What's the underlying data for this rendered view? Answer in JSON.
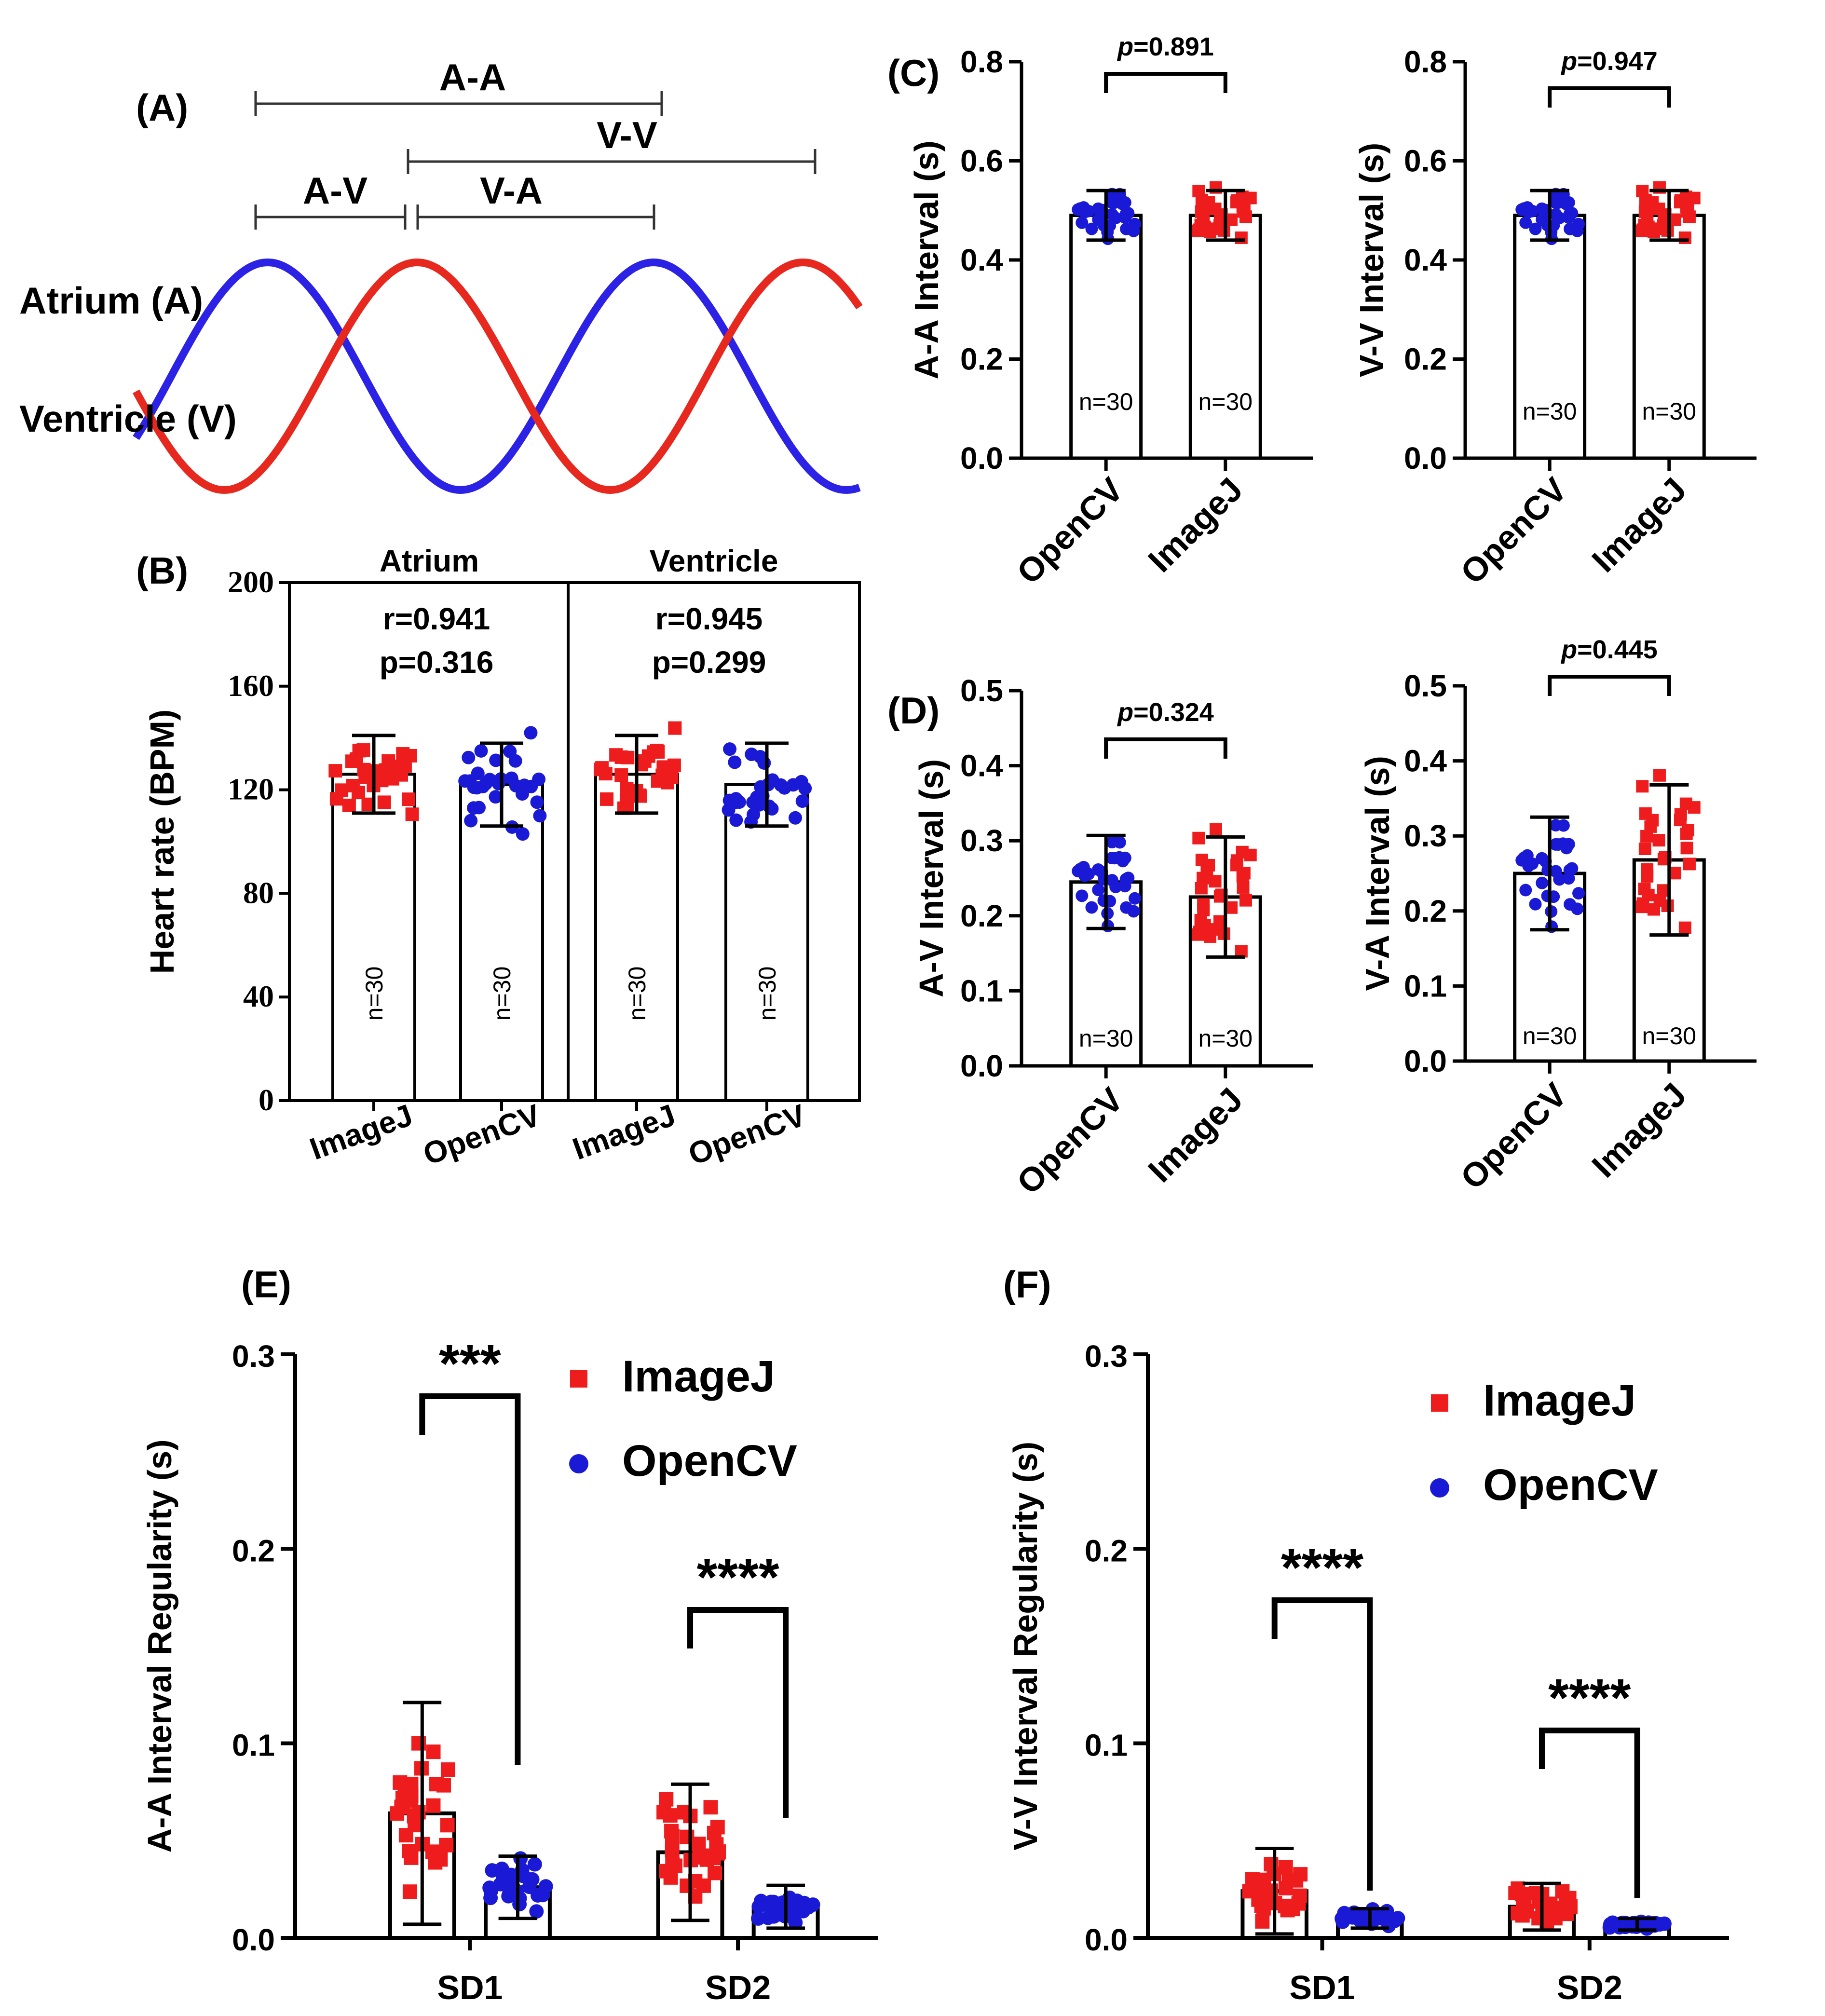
{
  "colors": {
    "imagej": "#ee1c1c",
    "opencv": "#1a1ad6",
    "atrium": "#2b22e6",
    "ventricle": "#e6281e"
  },
  "panelA": {
    "label": "(A)",
    "atrium_label": "Atrium (A)",
    "ventricle_label": "Ventricle (V)",
    "intervals": [
      "A-A",
      "V-V",
      "A-V",
      "V-A"
    ]
  },
  "chart_data": [
    {
      "id": "B",
      "label": "(B)",
      "type": "bar",
      "ylabel": "Heart rate (BPM)",
      "ylim": [
        0,
        200
      ],
      "yticks": [
        "0",
        "40",
        "80",
        "120",
        "160",
        "200"
      ],
      "groups": [
        "Atrium",
        "Ventricle"
      ],
      "categories": [
        "ImageJ",
        "OpenCV",
        "ImageJ",
        "OpenCV"
      ],
      "means": [
        126,
        122,
        126,
        122
      ],
      "sd": [
        15,
        16,
        15,
        16
      ],
      "n_labels": [
        "n=30",
        "n=30",
        "n=30",
        "n=30"
      ],
      "stats": [
        {
          "r": "r=0.941",
          "p": "p=0.316"
        },
        {
          "r": "r=0.945",
          "p": "p=0.299"
        }
      ]
    },
    {
      "id": "C1",
      "label": "(C)",
      "type": "bar",
      "ylabel": "A-A Interval (s)",
      "ylim": [
        0,
        0.8
      ],
      "yticks": [
        "0.0",
        "0.2",
        "0.4",
        "0.6",
        "0.8"
      ],
      "categories": [
        "OpenCV",
        "ImageJ"
      ],
      "means": [
        0.49,
        0.49
      ],
      "sd": [
        0.05,
        0.05
      ],
      "n_labels": [
        "n=30",
        "n=30"
      ],
      "p_prefix": "p",
      "p_value": "=0.891"
    },
    {
      "id": "C2",
      "label": "",
      "type": "bar",
      "ylabel": "V-V Interval (s)",
      "ylim": [
        0,
        0.8
      ],
      "yticks": [
        "0.0",
        "0.2",
        "0.4",
        "0.6",
        "0.8"
      ],
      "categories": [
        "OpenCV",
        "ImageJ"
      ],
      "means": [
        0.49,
        0.49
      ],
      "sd": [
        0.05,
        0.05
      ],
      "n_labels": [
        "n=30",
        "n=30"
      ],
      "p_prefix": "p",
      "p_value": "=0.947"
    },
    {
      "id": "D1",
      "label": "(D)",
      "type": "bar",
      "ylabel": "A-V Interval (s)",
      "ylim": [
        0,
        0.5
      ],
      "yticks": [
        "0.0",
        "0.1",
        "0.2",
        "0.3",
        "0.4",
        "0.5"
      ],
      "categories": [
        "OpenCV",
        "ImageJ"
      ],
      "means": [
        0.245,
        0.225
      ],
      "sd": [
        0.062,
        0.08
      ],
      "n_labels": [
        "n=30",
        "n=30"
      ],
      "p_prefix": "p",
      "p_value": "=0.324"
    },
    {
      "id": "D2",
      "label": "",
      "type": "bar",
      "ylabel": "V-A Interval (s)",
      "ylim": [
        0,
        0.5
      ],
      "yticks": [
        "0.0",
        "0.1",
        "0.2",
        "0.3",
        "0.4",
        "0.5"
      ],
      "categories": [
        "OpenCV",
        "ImageJ"
      ],
      "means": [
        0.25,
        0.268
      ],
      "sd": [
        0.075,
        0.1
      ],
      "n_labels": [
        "n=30",
        "n=30"
      ],
      "p_prefix": "p",
      "p_value": "=0.445"
    },
    {
      "id": "E",
      "label": "(E)",
      "type": "bar",
      "ylabel": "A-A Interval Regularity (s)",
      "ylim": [
        0,
        0.3
      ],
      "yticks": [
        "0.0",
        "0.1",
        "0.2",
        "0.3"
      ],
      "categories": [
        "SD1",
        "SD2"
      ],
      "series": [
        {
          "name": "ImageJ",
          "means": [
            0.064,
            0.044
          ],
          "sd": [
            0.057,
            0.035
          ]
        },
        {
          "name": "OpenCV",
          "means": [
            0.026,
            0.016
          ],
          "sd": [
            0.016,
            0.011
          ]
        }
      ],
      "significance": [
        "***",
        "****"
      ],
      "legend": [
        "ImageJ",
        "OpenCV"
      ]
    },
    {
      "id": "F",
      "label": "(F)",
      "type": "bar",
      "ylabel": "V-V Interval Regularity (s)",
      "ylim": [
        0,
        0.3
      ],
      "yticks": [
        "0.0",
        "0.1",
        "0.2",
        "0.3"
      ],
      "categories": [
        "SD1",
        "SD2"
      ],
      "series": [
        {
          "name": "ImageJ",
          "means": [
            0.024,
            0.016
          ],
          "sd": [
            0.022,
            0.012
          ]
        },
        {
          "name": "OpenCV",
          "means": [
            0.01,
            0.007
          ],
          "sd": [
            0.005,
            0.003
          ]
        }
      ],
      "significance": [
        "****",
        "****"
      ],
      "legend": [
        "ImageJ",
        "OpenCV"
      ]
    }
  ]
}
